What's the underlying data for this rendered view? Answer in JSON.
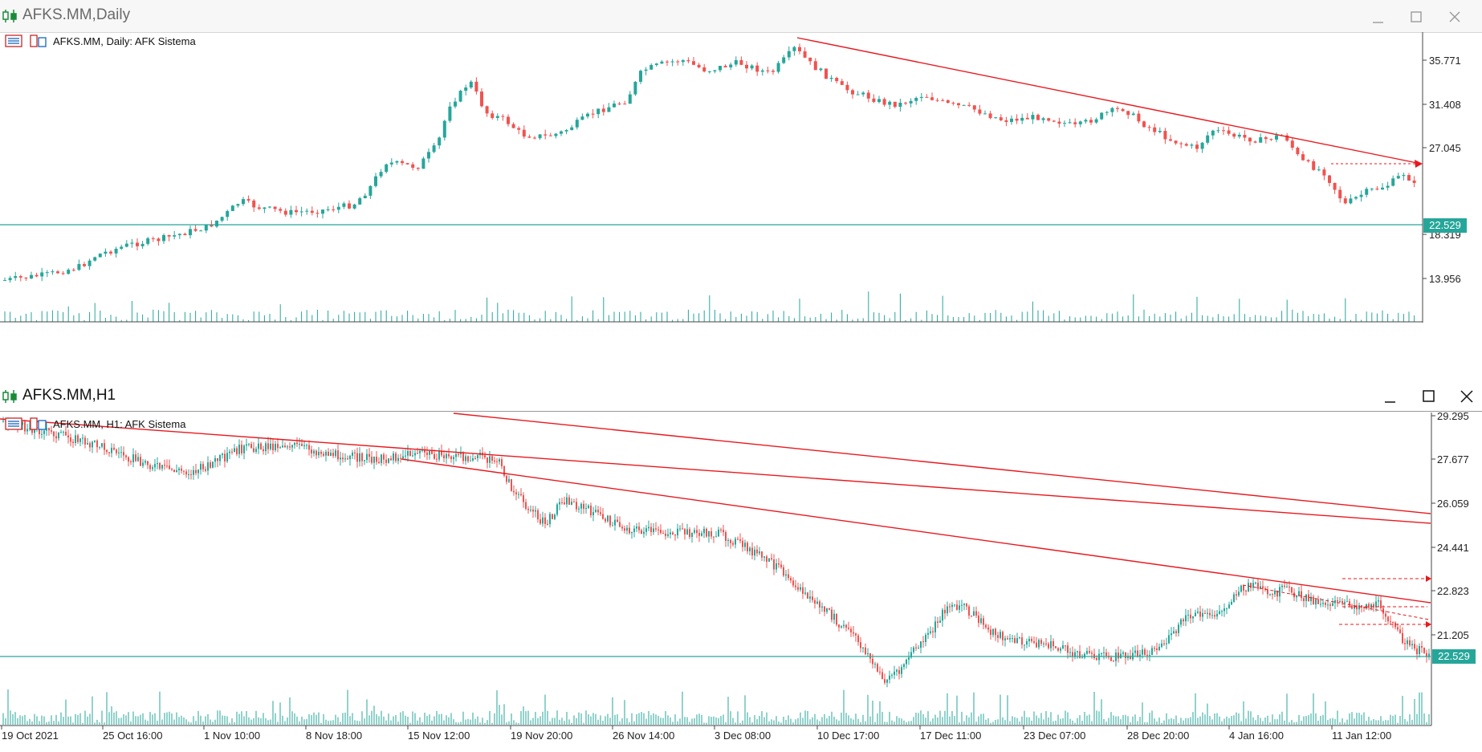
{
  "top_window": {
    "title": "AFKS.MM,Daily",
    "legend": "AFKS.MM, Daily:  AFK Sistema",
    "price_axis": [
      "35.771",
      "31.408",
      "27.045",
      "18.319",
      "13.956"
    ],
    "current_price": "22.529"
  },
  "bottom_window": {
    "title": "AFKS.MM,H1",
    "legend": "AFKS.MM, H1:  AFK Sistema",
    "price_axis": [
      "29.295",
      "27.677",
      "26.059",
      "24.441",
      "22.823",
      "21.205"
    ],
    "current_price": "22.529",
    "time_axis": [
      "19 Oct 2021",
      "25 Oct 16:00",
      "1 Nov 10:00",
      "8 Nov 18:00",
      "15 Nov 12:00",
      "19 Nov 20:00",
      "26 Nov 14:00",
      "3 Dec 08:00",
      "10 Dec 17:00",
      "17 Dec 11:00",
      "23 Dec 07:00",
      "28 Dec 20:00",
      "4 Jan 16:00",
      "11 Jan 12:00"
    ]
  },
  "colors": {
    "bull": "#26a69a",
    "bear": "#ef5350",
    "trendline": "#e8191e",
    "price_line": "#26a69a",
    "volume": "#26a69a"
  },
  "icons": [
    "candlestick-app-icon",
    "minimize-icon",
    "maximize-icon",
    "close-icon",
    "indicator-list-icon",
    "chart-type-icon"
  ]
}
